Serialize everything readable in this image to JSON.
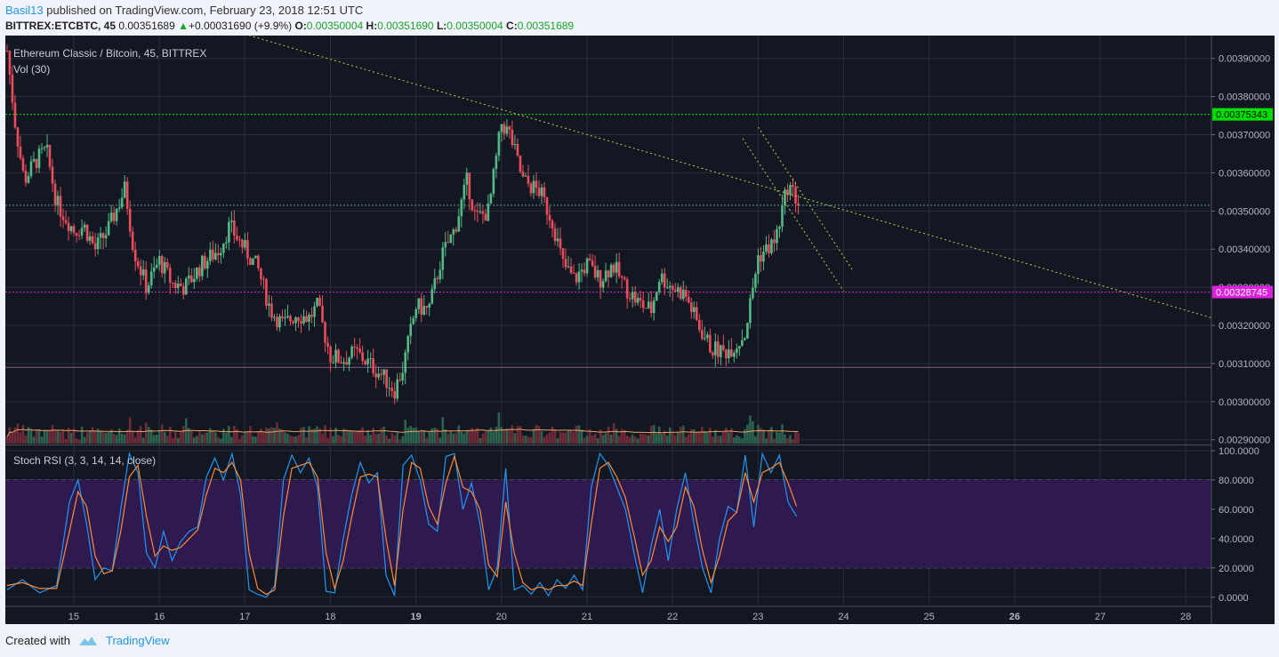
{
  "header": {
    "user": "Basil13",
    "published": "published on TradingView.com, February 23, 2018 12:51 UTC",
    "symbol": "BITTREX:ETCBTC, 45",
    "last": "0.00351689",
    "change": "+0.00031690 (+9.9%)",
    "o_label": "O:",
    "o": "0.00350004",
    "h_label": "H:",
    "h": "0.00351690",
    "l_label": "L:",
    "l": "0.00350004",
    "c_label": "C:",
    "c": "0.00351689"
  },
  "footer": {
    "created": "Created with",
    "brand": "TradingView"
  },
  "colors": {
    "bg": "#131722",
    "up": "#53b987",
    "down": "#eb4d5c",
    "green_line": "#00e000",
    "magenta_line": "#e020e0",
    "trend": "#c8c84a",
    "rsi_fill": "#2e1a4f",
    "k_line": "#2196f3",
    "d_line": "#ff8a33"
  },
  "chart_data": [
    {
      "type": "candlestick",
      "title": "Ethereum Classic / Bitcoin, 45, BITTREX",
      "subtitle": "Vol (30)",
      "ylim": [
        0.00289,
        0.00396
      ],
      "y_ticks": [
        "0.00390000",
        "0.00380000",
        "0.00370000",
        "0.00360000",
        "0.00350000",
        "0.00340000",
        "0.00330000",
        "0.00320000",
        "0.00310000",
        "0.00300000",
        "0.00290000"
      ],
      "x_ticks": [
        "15",
        "16",
        "17",
        "18",
        "19",
        "20",
        "21",
        "22",
        "23",
        "24",
        "25",
        "26",
        "27",
        "28"
      ],
      "x_bold": [
        "19",
        "26"
      ],
      "x_range": [
        14.2,
        28.3
      ],
      "price_points": [
        [
          14.22,
          0.00392
        ],
        [
          14.32,
          0.00372
        ],
        [
          14.42,
          0.00358
        ],
        [
          14.55,
          0.00363
        ],
        [
          14.68,
          0.00366
        ],
        [
          14.8,
          0.00352
        ],
        [
          15.0,
          0.00345
        ],
        [
          15.12,
          0.00346
        ],
        [
          15.25,
          0.0034
        ],
        [
          15.4,
          0.00345
        ],
        [
          15.6,
          0.00356
        ],
        [
          15.7,
          0.0034
        ],
        [
          15.85,
          0.0033
        ],
        [
          16.0,
          0.00337
        ],
        [
          16.15,
          0.00331
        ],
        [
          16.3,
          0.0033
        ],
        [
          16.5,
          0.00336
        ],
        [
          16.7,
          0.0034
        ],
        [
          16.82,
          0.00346
        ],
        [
          17.0,
          0.0034
        ],
        [
          17.15,
          0.00335
        ],
        [
          17.3,
          0.00324
        ],
        [
          17.45,
          0.0032
        ],
        [
          17.6,
          0.00323
        ],
        [
          17.75,
          0.00322
        ],
        [
          17.85,
          0.00325
        ],
        [
          18.0,
          0.00312
        ],
        [
          18.15,
          0.00311
        ],
        [
          18.3,
          0.00313
        ],
        [
          18.45,
          0.0031
        ],
        [
          18.6,
          0.00307
        ],
        [
          18.75,
          0.00303
        ],
        [
          18.85,
          0.00309
        ],
        [
          19.0,
          0.00325
        ],
        [
          19.15,
          0.00324
        ],
        [
          19.3,
          0.00338
        ],
        [
          19.45,
          0.00345
        ],
        [
          19.6,
          0.00358
        ],
        [
          19.7,
          0.00348
        ],
        [
          19.85,
          0.0035
        ],
        [
          20.0,
          0.00373
        ],
        [
          20.1,
          0.0037
        ],
        [
          20.25,
          0.00358
        ],
        [
          20.45,
          0.00355
        ],
        [
          20.6,
          0.00347
        ],
        [
          20.72,
          0.00336
        ],
        [
          20.85,
          0.00332
        ],
        [
          21.0,
          0.00336
        ],
        [
          21.15,
          0.00332
        ],
        [
          21.3,
          0.00336
        ],
        [
          21.45,
          0.0033
        ],
        [
          21.6,
          0.00326
        ],
        [
          21.75,
          0.00324
        ],
        [
          21.85,
          0.00333
        ],
        [
          22.0,
          0.0033
        ],
        [
          22.15,
          0.00328
        ],
        [
          22.3,
          0.0032
        ],
        [
          22.45,
          0.00314
        ],
        [
          22.6,
          0.00313
        ],
        [
          22.75,
          0.00315
        ],
        [
          22.85,
          0.00318
        ],
        [
          23.0,
          0.00338
        ],
        [
          23.2,
          0.00342
        ],
        [
          23.35,
          0.00357
        ],
        [
          23.5,
          0.00351
        ]
      ],
      "h_lines": [
        {
          "name": "resistance-green",
          "value": 0.00375343,
          "label": "0.00375343"
        },
        {
          "name": "pivot-magenta",
          "value": 0.00328745,
          "label": "0.00328745"
        },
        {
          "name": "support-line",
          "value": 0.00309
        },
        {
          "name": "dotted-cyan",
          "value": 0.003515
        }
      ],
      "trendlines": [
        {
          "x1": 16.6,
          "y1": 0.00399,
          "x2": 28.3,
          "y2": 0.00322
        },
        {
          "x1": 22.82,
          "y1": 0.00369,
          "x2": 24.0,
          "y2": 0.00329
        },
        {
          "x1": 23.0,
          "y1": 0.00372,
          "x2": 24.12,
          "y2": 0.00334
        }
      ]
    },
    {
      "type": "line",
      "title": "Stoch RSI (3, 3, 14, 14, close)",
      "ylim": [
        -5,
        103
      ],
      "y_ticks": [
        "100.0000",
        "80.0000",
        "60.0000",
        "40.0000",
        "20.0000",
        "0.0000"
      ],
      "band": [
        20,
        80
      ],
      "series": [
        {
          "name": "K",
          "points": [
            [
              14.22,
              5
            ],
            [
              14.4,
              12
            ],
            [
              14.6,
              3
            ],
            [
              14.8,
              8
            ],
            [
              14.95,
              65
            ],
            [
              15.05,
              80
            ],
            [
              15.15,
              50
            ],
            [
              15.25,
              12
            ],
            [
              15.35,
              20
            ],
            [
              15.45,
              18
            ],
            [
              15.55,
              60
            ],
            [
              15.65,
              98
            ],
            [
              15.75,
              85
            ],
            [
              15.85,
              30
            ],
            [
              15.95,
              20
            ],
            [
              16.05,
              45
            ],
            [
              16.15,
              25
            ],
            [
              16.25,
              38
            ],
            [
              16.35,
              45
            ],
            [
              16.45,
              48
            ],
            [
              16.55,
              82
            ],
            [
              16.65,
              95
            ],
            [
              16.75,
              80
            ],
            [
              16.85,
              98
            ],
            [
              16.95,
              70
            ],
            [
              17.05,
              5
            ],
            [
              17.15,
              2
            ],
            [
              17.25,
              0
            ],
            [
              17.35,
              8
            ],
            [
              17.45,
              80
            ],
            [
              17.55,
              97
            ],
            [
              17.65,
              85
            ],
            [
              17.75,
              95
            ],
            [
              17.85,
              75
            ],
            [
              17.95,
              4
            ],
            [
              18.05,
              3
            ],
            [
              18.15,
              40
            ],
            [
              18.25,
              70
            ],
            [
              18.35,
              92
            ],
            [
              18.45,
              78
            ],
            [
              18.55,
              85
            ],
            [
              18.65,
              15
            ],
            [
              18.75,
              1
            ],
            [
              18.85,
              90
            ],
            [
              18.95,
              97
            ],
            [
              19.05,
              80
            ],
            [
              19.15,
              50
            ],
            [
              19.25,
              45
            ],
            [
              19.35,
              96
            ],
            [
              19.45,
              98
            ],
            [
              19.55,
              60
            ],
            [
              19.65,
              78
            ],
            [
              19.75,
              50
            ],
            [
              19.85,
              5
            ],
            [
              19.95,
              20
            ],
            [
              20.05,
              88
            ],
            [
              20.15,
              5
            ],
            [
              20.25,
              8
            ],
            [
              20.35,
              2
            ],
            [
              20.45,
              10
            ],
            [
              20.55,
              1
            ],
            [
              20.65,
              12
            ],
            [
              20.75,
              6
            ],
            [
              20.85,
              15
            ],
            [
              20.95,
              5
            ],
            [
              21.05,
              75
            ],
            [
              21.15,
              98
            ],
            [
              21.25,
              90
            ],
            [
              21.35,
              75
            ],
            [
              21.45,
              60
            ],
            [
              21.55,
              30
            ],
            [
              21.65,
              3
            ],
            [
              21.75,
              35
            ],
            [
              21.85,
              60
            ],
            [
              21.95,
              25
            ],
            [
              22.05,
              60
            ],
            [
              22.15,
              85
            ],
            [
              22.25,
              50
            ],
            [
              22.35,
              20
            ],
            [
              22.45,
              3
            ],
            [
              22.55,
              40
            ],
            [
              22.65,
              62
            ],
            [
              22.75,
              58
            ],
            [
              22.85,
              97
            ],
            [
              22.95,
              48
            ],
            [
              23.05,
              98
            ],
            [
              23.15,
              85
            ],
            [
              23.25,
              97
            ],
            [
              23.35,
              65
            ],
            [
              23.45,
              55
            ]
          ]
        },
        {
          "name": "D",
          "points": [
            [
              14.22,
              8
            ],
            [
              14.4,
              10
            ],
            [
              14.6,
              6
            ],
            [
              14.8,
              6
            ],
            [
              14.95,
              45
            ],
            [
              15.05,
              72
            ],
            [
              15.15,
              62
            ],
            [
              15.25,
              28
            ],
            [
              15.35,
              16
            ],
            [
              15.45,
              18
            ],
            [
              15.55,
              45
            ],
            [
              15.65,
              82
            ],
            [
              15.75,
              90
            ],
            [
              15.85,
              55
            ],
            [
              15.95,
              28
            ],
            [
              16.05,
              35
            ],
            [
              16.15,
              32
            ],
            [
              16.25,
              34
            ],
            [
              16.35,
              40
            ],
            [
              16.45,
              46
            ],
            [
              16.55,
              70
            ],
            [
              16.65,
              88
            ],
            [
              16.75,
              85
            ],
            [
              16.85,
              92
            ],
            [
              16.95,
              80
            ],
            [
              17.05,
              30
            ],
            [
              17.15,
              6
            ],
            [
              17.25,
              2
            ],
            [
              17.35,
              5
            ],
            [
              17.45,
              55
            ],
            [
              17.55,
              88
            ],
            [
              17.65,
              90
            ],
            [
              17.75,
              92
            ],
            [
              17.85,
              82
            ],
            [
              17.95,
              30
            ],
            [
              18.05,
              6
            ],
            [
              18.15,
              25
            ],
            [
              18.25,
              55
            ],
            [
              18.35,
              82
            ],
            [
              18.45,
              84
            ],
            [
              18.55,
              82
            ],
            [
              18.65,
              40
            ],
            [
              18.75,
              8
            ],
            [
              18.85,
              60
            ],
            [
              18.95,
              92
            ],
            [
              19.05,
              88
            ],
            [
              19.15,
              62
            ],
            [
              19.25,
              50
            ],
            [
              19.35,
              78
            ],
            [
              19.45,
              96
            ],
            [
              19.55,
              75
            ],
            [
              19.65,
              72
            ],
            [
              19.75,
              60
            ],
            [
              19.85,
              22
            ],
            [
              19.95,
              14
            ],
            [
              20.05,
              65
            ],
            [
              20.15,
              30
            ],
            [
              20.25,
              10
            ],
            [
              20.35,
              5
            ],
            [
              20.45,
              7
            ],
            [
              20.55,
              5
            ],
            [
              20.65,
              8
            ],
            [
              20.75,
              8
            ],
            [
              20.85,
              11
            ],
            [
              20.95,
              8
            ],
            [
              21.05,
              50
            ],
            [
              21.15,
              88
            ],
            [
              21.25,
              92
            ],
            [
              21.35,
              82
            ],
            [
              21.45,
              68
            ],
            [
              21.55,
              42
            ],
            [
              21.65,
              15
            ],
            [
              21.75,
              25
            ],
            [
              21.85,
              48
            ],
            [
              21.95,
              38
            ],
            [
              22.05,
              48
            ],
            [
              22.15,
              75
            ],
            [
              22.25,
              62
            ],
            [
              22.35,
              32
            ],
            [
              22.45,
              10
            ],
            [
              22.55,
              28
            ],
            [
              22.65,
              52
            ],
            [
              22.75,
              58
            ],
            [
              22.85,
              85
            ],
            [
              22.95,
              65
            ],
            [
              23.05,
              85
            ],
            [
              23.15,
              88
            ],
            [
              23.25,
              92
            ],
            [
              23.35,
              78
            ],
            [
              23.45,
              62
            ]
          ]
        }
      ]
    }
  ]
}
